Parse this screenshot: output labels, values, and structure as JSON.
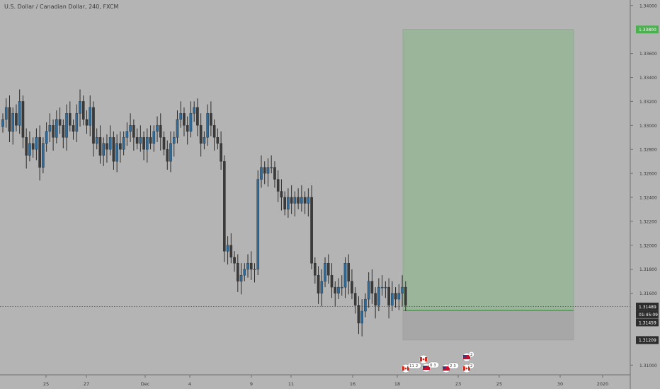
{
  "header": {
    "symbol_title": "U.S. Dollar / Canadian Dollar, 240, FXCM"
  },
  "colors": {
    "background": "#b4b4b4",
    "bull": "#2f6b9a",
    "bear": "#3a3a3a",
    "profit_zone": "#9bb59b",
    "loss_zone": "#a7a7a7",
    "target_tag": "#4caf50",
    "price_tag": "#2d2d2d"
  },
  "chart_data": {
    "type": "candlestick",
    "title": "U.S. Dollar / Canadian Dollar, 240, FXCM",
    "ylim": [
      1.30919,
      1.34046
    ],
    "y_ticks": [
      "1.34000",
      "1.33600",
      "1.33400",
      "1.33200",
      "1.33000",
      "1.32800",
      "1.32600",
      "1.32400",
      "1.32200",
      "1.32000",
      "1.31800",
      "1.31600",
      "1.31000"
    ],
    "x_ticks": [
      "25",
      "27",
      "Dec",
      "4",
      "9",
      "11",
      "16",
      "18",
      "23",
      "25",
      "30",
      "2020"
    ],
    "current_price": "1.31489",
    "countdown": "01:45:09",
    "entry_price": "1.31459",
    "target_price": "1.33800",
    "stop_price": "1.31209",
    "closes": [
      1.3305,
      1.3315,
      1.3295,
      1.331,
      1.33,
      1.332,
      1.329,
      1.3275,
      1.3285,
      1.328,
      1.329,
      1.3265,
      1.3285,
      1.3295,
      1.33,
      1.329,
      1.3305,
      1.33,
      1.329,
      1.331,
      1.33,
      1.3295,
      1.331,
      1.332,
      1.3305,
      1.33,
      1.3315,
      1.3285,
      1.329,
      1.3275,
      1.3285,
      1.328,
      1.329,
      1.327,
      1.3285,
      1.328,
      1.329,
      1.3295,
      1.33,
      1.329,
      1.3285,
      1.329,
      1.328,
      1.329,
      1.3285,
      1.3295,
      1.33,
      1.329,
      1.328,
      1.327,
      1.3285,
      1.329,
      1.3305,
      1.331,
      1.33,
      1.3295,
      1.331,
      1.3315,
      1.33,
      1.3285,
      1.329,
      1.331,
      1.33,
      1.329,
      1.3285,
      1.327,
      1.3195,
      1.32,
      1.319,
      1.3185,
      1.317,
      1.3175,
      1.318,
      1.3185,
      1.318,
      1.318,
      1.3255,
      1.3265,
      1.326,
      1.3265,
      1.3265,
      1.3255,
      1.3245,
      1.324,
      1.323,
      1.324,
      1.3235,
      1.324,
      1.3235,
      1.324,
      1.3235,
      1.324,
      1.3185,
      1.3175,
      1.316,
      1.317,
      1.3185,
      1.3175,
      1.3165,
      1.316,
      1.3165,
      1.3165,
      1.3185,
      1.317,
      1.316,
      1.315,
      1.3135,
      1.3145,
      1.3155,
      1.317,
      1.316,
      1.315,
      1.3165,
      1.3165,
      1.3165,
      1.315,
      1.316,
      1.3155,
      1.316,
      1.3165,
      1.315
    ]
  },
  "position_tool": {
    "target_label": "1.33800",
    "entry_label": "1.31459",
    "stop_label": "1.31209"
  },
  "events": [
    {
      "flag": "CA",
      "badge": "11 2"
    },
    {
      "flag": "CA",
      "badge": ""
    },
    {
      "flag": "US",
      "badge": "0 3"
    },
    {
      "flag": "US",
      "badge": "2 3"
    },
    {
      "flag": "US",
      "badge": "2"
    },
    {
      "flag": "CA",
      "badge": "2"
    }
  ]
}
